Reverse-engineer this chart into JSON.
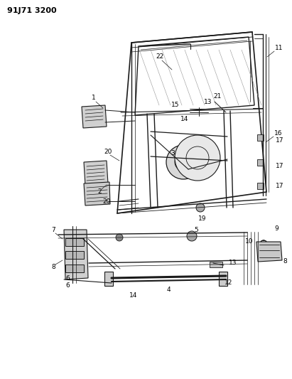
{
  "title_code": "91J71 3200",
  "bg_color": "#ffffff",
  "line_color": "#1a1a1a",
  "text_color": "#000000",
  "figsize": [
    4.11,
    5.33
  ],
  "dpi": 100
}
